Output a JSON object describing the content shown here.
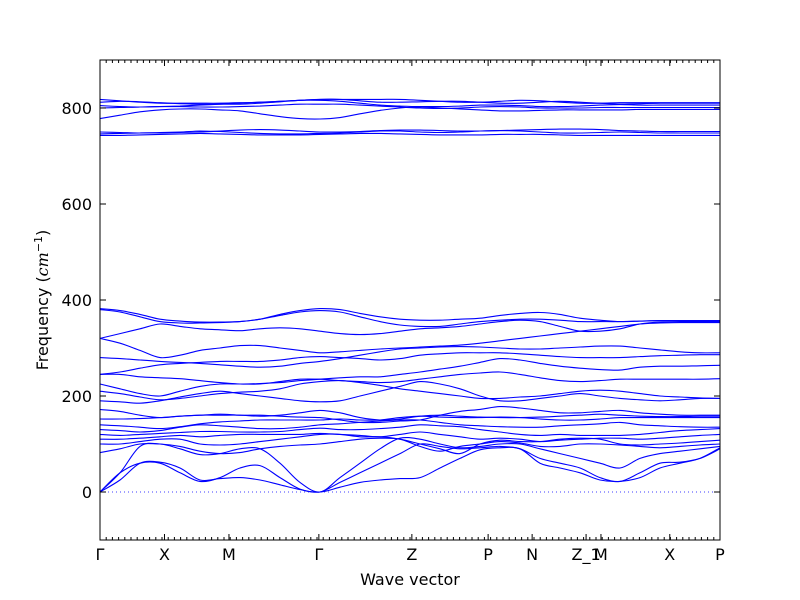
{
  "chart_data": {
    "type": "line",
    "title": "",
    "xlabel": "Wave vector",
    "ylabel": "Frequency (",
    "ylabel_unit": "cm",
    "ylabel_exp": "−1",
    "ylabel_close": ")",
    "ylim": [
      -100,
      900
    ],
    "yticks": [
      0,
      200,
      400,
      600,
      800
    ],
    "ytick_labels": [
      "0",
      "200",
      "400",
      "600",
      "800"
    ],
    "xlim": [
      0,
      1
    ],
    "grid": false,
    "legend": "none",
    "zero_line": 0,
    "colors": {
      "bands": "#0000ff",
      "frame": "#000000"
    },
    "high_symmetry_points": [
      {
        "label": "Γ",
        "x": 0.0
      },
      {
        "label": "X",
        "x": 0.104
      },
      {
        "label": "M",
        "x": 0.208
      },
      {
        "label": "Γ",
        "x": 0.353
      },
      {
        "label": "Z",
        "x": 0.503
      },
      {
        "label": "P",
        "x": 0.626
      },
      {
        "label": "N",
        "x": 0.697
      },
      {
        "label": "Z_1",
        "x": 0.784
      },
      {
        "label": "M",
        "x": 0.808
      },
      {
        "label": "X",
        "x": 0.919
      },
      {
        "label": "P",
        "x": 1.0
      }
    ],
    "series": [
      {
        "values": [
          0,
          40,
          60,
          60,
          40,
          22,
          30,
          50,
          55,
          30,
          6,
          0,
          10,
          20,
          25,
          28,
          30,
          50,
          70,
          88,
          92,
          90,
          60,
          50,
          40,
          25,
          22,
          30,
          50,
          60,
          70,
          92
        ]
      },
      {
        "values": [
          0,
          25,
          60,
          62,
          50,
          25,
          28,
          30,
          25,
          15,
          5,
          0,
          20,
          40,
          60,
          80,
          100,
          95,
          90,
          92,
          95,
          90,
          70,
          60,
          50,
          30,
          22,
          40,
          60,
          62,
          70,
          90
        ]
      },
      {
        "values": [
          0,
          40,
          95,
          100,
          90,
          78,
          80,
          90,
          90,
          60,
          20,
          0,
          30,
          60,
          90,
          112,
          110,
          100,
          92,
          95,
          100,
          100,
          90,
          80,
          70,
          60,
          50,
          70,
          80,
          85,
          90,
          95
        ]
      },
      {
        "values": [
          82,
          90,
          100,
          100,
          95,
          85,
          80,
          82,
          90,
          95,
          98,
          100,
          105,
          110,
          112,
          110,
          95,
          85,
          95,
          100,
          105,
          102,
          95,
          95,
          100,
          100,
          98,
          95,
          92,
          95,
          98,
          100
        ]
      },
      {
        "values": [
          100,
          100,
          105,
          110,
          110,
          100,
          98,
          100,
          105,
          110,
          115,
          120,
          120,
          115,
          115,
          110,
          100,
          90,
          80,
          100,
          108,
          105,
          105,
          110,
          112,
          110,
          100,
          98,
          100,
          102,
          105,
          108
        ]
      },
      {
        "values": [
          110,
          110,
          112,
          115,
          118,
          115,
          118,
          120,
          120,
          120,
          120,
          122,
          120,
          118,
          115,
          120,
          125,
          120,
          115,
          110,
          112,
          110,
          105,
          108,
          110,
          112,
          112,
          110,
          112,
          115,
          118,
          120
        ]
      },
      {
        "values": [
          120,
          118,
          120,
          122,
          124,
          126,
          126,
          125,
          125,
          126,
          130,
          133,
          130,
          130,
          132,
          135,
          140,
          138,
          136,
          130,
          125,
          120,
          118,
          120,
          118,
          118,
          118,
          120,
          124,
          128,
          130,
          132
        ]
      },
      {
        "values": [
          130,
          128,
          125,
          128,
          135,
          140,
          138,
          135,
          132,
          132,
          135,
          140,
          142,
          145,
          148,
          150,
          150,
          145,
          140,
          138,
          136,
          135,
          135,
          138,
          140,
          142,
          145,
          140,
          138,
          136,
          135,
          135
        ]
      },
      {
        "values": [
          140,
          138,
          135,
          132,
          136,
          142,
          146,
          148,
          150,
          150,
          150,
          150,
          152,
          150,
          150,
          155,
          158,
          156,
          155,
          155,
          156,
          155,
          152,
          150,
          150,
          152,
          155,
          155,
          155,
          155,
          155,
          155
        ]
      },
      {
        "values": [
          152,
          152,
          153,
          155,
          158,
          160,
          160,
          160,
          158,
          160,
          165,
          170,
          165,
          155,
          150,
          152,
          158,
          160,
          158,
          156,
          155,
          155,
          156,
          158,
          160,
          162,
          160,
          158,
          157,
          157,
          158,
          158
        ]
      },
      {
        "values": [
          172,
          168,
          160,
          155,
          158,
          160,
          162,
          160,
          160,
          158,
          156,
          155,
          150,
          145,
          145,
          148,
          150,
          160,
          168,
          172,
          178,
          175,
          170,
          165,
          165,
          168,
          170,
          165,
          162,
          160,
          160,
          160
        ]
      },
      {
        "values": [
          190,
          188,
          185,
          190,
          198,
          205,
          210,
          205,
          200,
          195,
          190,
          188,
          190,
          200,
          210,
          220,
          230,
          225,
          215,
          200,
          190,
          190,
          195,
          200,
          205,
          200,
          195,
          192,
          190,
          192,
          195,
          195
        ]
      },
      {
        "values": [
          210,
          205,
          198,
          192,
          195,
          200,
          205,
          208,
          210,
          215,
          225,
          230,
          232,
          228,
          222,
          215,
          210,
          205,
          200,
          195,
          195,
          198,
          200,
          205,
          210,
          212,
          210,
          205,
          200,
          198,
          196,
          195
        ]
      },
      {
        "values": [
          225,
          215,
          205,
          200,
          210,
          220,
          225,
          225,
          225,
          230,
          235,
          235,
          232,
          230,
          228,
          230,
          235,
          240,
          245,
          248,
          250,
          245,
          238,
          232,
          230,
          232,
          235,
          235,
          235,
          235,
          235,
          236
        ]
      },
      {
        "values": [
          245,
          245,
          240,
          238,
          236,
          232,
          228,
          225,
          226,
          228,
          232,
          235,
          238,
          240,
          240,
          245,
          250,
          256,
          262,
          270,
          278,
          275,
          268,
          262,
          258,
          255,
          254,
          260,
          262,
          262,
          263,
          264
        ]
      },
      {
        "values": [
          245,
          250,
          258,
          265,
          268,
          270,
          272,
          272,
          272,
          275,
          280,
          282,
          280,
          278,
          275,
          278,
          285,
          288,
          290,
          290,
          290,
          288,
          285,
          282,
          280,
          280,
          280,
          282,
          284,
          285,
          286,
          286
        ]
      },
      {
        "values": [
          280,
          278,
          275,
          272,
          270,
          268,
          265,
          262,
          260,
          262,
          268,
          272,
          278,
          285,
          292,
          298,
          300,
          302,
          303,
          302,
          300,
          298,
          298,
          300,
          302,
          304,
          304,
          300,
          296,
          292,
          290,
          290
        ]
      },
      {
        "values": [
          320,
          310,
          295,
          280,
          285,
          295,
          300,
          305,
          305,
          300,
          295,
          290,
          292,
          295,
          298,
          300,
          302,
          304,
          306,
          310,
          315,
          320,
          325,
          330,
          335,
          340,
          345,
          350,
          352,
          353,
          353,
          353
        ]
      },
      {
        "values": [
          320,
          330,
          340,
          350,
          345,
          340,
          338,
          336,
          340,
          342,
          340,
          335,
          330,
          328,
          330,
          335,
          340,
          342,
          345,
          350,
          355,
          358,
          355,
          345,
          335,
          335,
          340,
          350,
          354,
          355,
          355,
          355
        ]
      },
      {
        "values": [
          380,
          375,
          365,
          355,
          352,
          352,
          353,
          355,
          360,
          368,
          375,
          378,
          375,
          365,
          355,
          348,
          345,
          345,
          350,
          355,
          358,
          360,
          360,
          358,
          355,
          355,
          355,
          356,
          357,
          357,
          357,
          357
        ]
      },
      {
        "values": [
          382,
          378,
          370,
          360,
          356,
          354,
          354,
          355,
          360,
          370,
          378,
          382,
          380,
          372,
          365,
          360,
          358,
          358,
          360,
          362,
          368,
          372,
          374,
          370,
          362,
          358,
          355,
          356,
          357,
          357,
          357,
          357
        ]
      },
      {
        "values": [
          743,
          743,
          744,
          745,
          746,
          747,
          746,
          745,
          744,
          744,
          744,
          745,
          746,
          747,
          747,
          746,
          745,
          744,
          744,
          744,
          745,
          745,
          745,
          744,
          743,
          743,
          743,
          743,
          743,
          743,
          743,
          743
        ]
      },
      {
        "values": [
          746,
          747,
          748,
          749,
          750,
          752,
          751,
          749,
          747,
          746,
          746,
          747,
          748,
          750,
          752,
          752,
          750,
          749,
          750,
          752,
          753,
          752,
          750,
          748,
          748,
          749,
          750,
          749,
          748,
          748,
          748,
          748
        ]
      },
      {
        "values": [
          750,
          749,
          748,
          748,
          749,
          750,
          752,
          754,
          755,
          754,
          752,
          750,
          750,
          751,
          753,
          754,
          754,
          753,
          752,
          752,
          753,
          754,
          755,
          756,
          756,
          755,
          753,
          752,
          751,
          751,
          751,
          751
        ]
      },
      {
        "values": [
          778,
          785,
          792,
          796,
          798,
          798,
          796,
          794,
          788,
          782,
          778,
          777,
          780,
          788,
          795,
          800,
          802,
          800,
          798,
          796,
          794,
          794,
          795,
          796,
          796,
          796,
          796,
          797,
          797,
          797,
          797,
          797
        ]
      },
      {
        "values": [
          800,
          801,
          802,
          803,
          803,
          802,
          802,
          803,
          804,
          806,
          808,
          808,
          808,
          806,
          804,
          802,
          800,
          799,
          800,
          802,
          803,
          802,
          800,
          800,
          800,
          801,
          801,
          801,
          801,
          801,
          801,
          801
        ]
      },
      {
        "values": [
          805,
          803,
          802,
          803,
          804,
          806,
          808,
          810,
          812,
          814,
          816,
          816,
          814,
          810,
          806,
          804,
          803,
          803,
          804,
          806,
          806,
          805,
          803,
          803,
          804,
          806,
          807,
          806,
          806,
          806,
          806,
          806
        ]
      },
      {
        "values": [
          812,
          814,
          813,
          811,
          809,
          808,
          808,
          808,
          810,
          813,
          816,
          818,
          818,
          815,
          812,
          812,
          813,
          814,
          814,
          812,
          810,
          810,
          812,
          814,
          812,
          810,
          808,
          809,
          810,
          810,
          810,
          810
        ]
      },
      {
        "values": [
          818,
          815,
          812,
          810,
          810,
          810,
          810,
          811,
          812,
          814,
          816,
          818,
          818,
          818,
          818,
          818,
          816,
          814,
          812,
          812,
          814,
          816,
          815,
          812,
          810,
          810,
          811,
          811,
          811,
          811,
          811,
          811
        ]
      }
    ]
  }
}
